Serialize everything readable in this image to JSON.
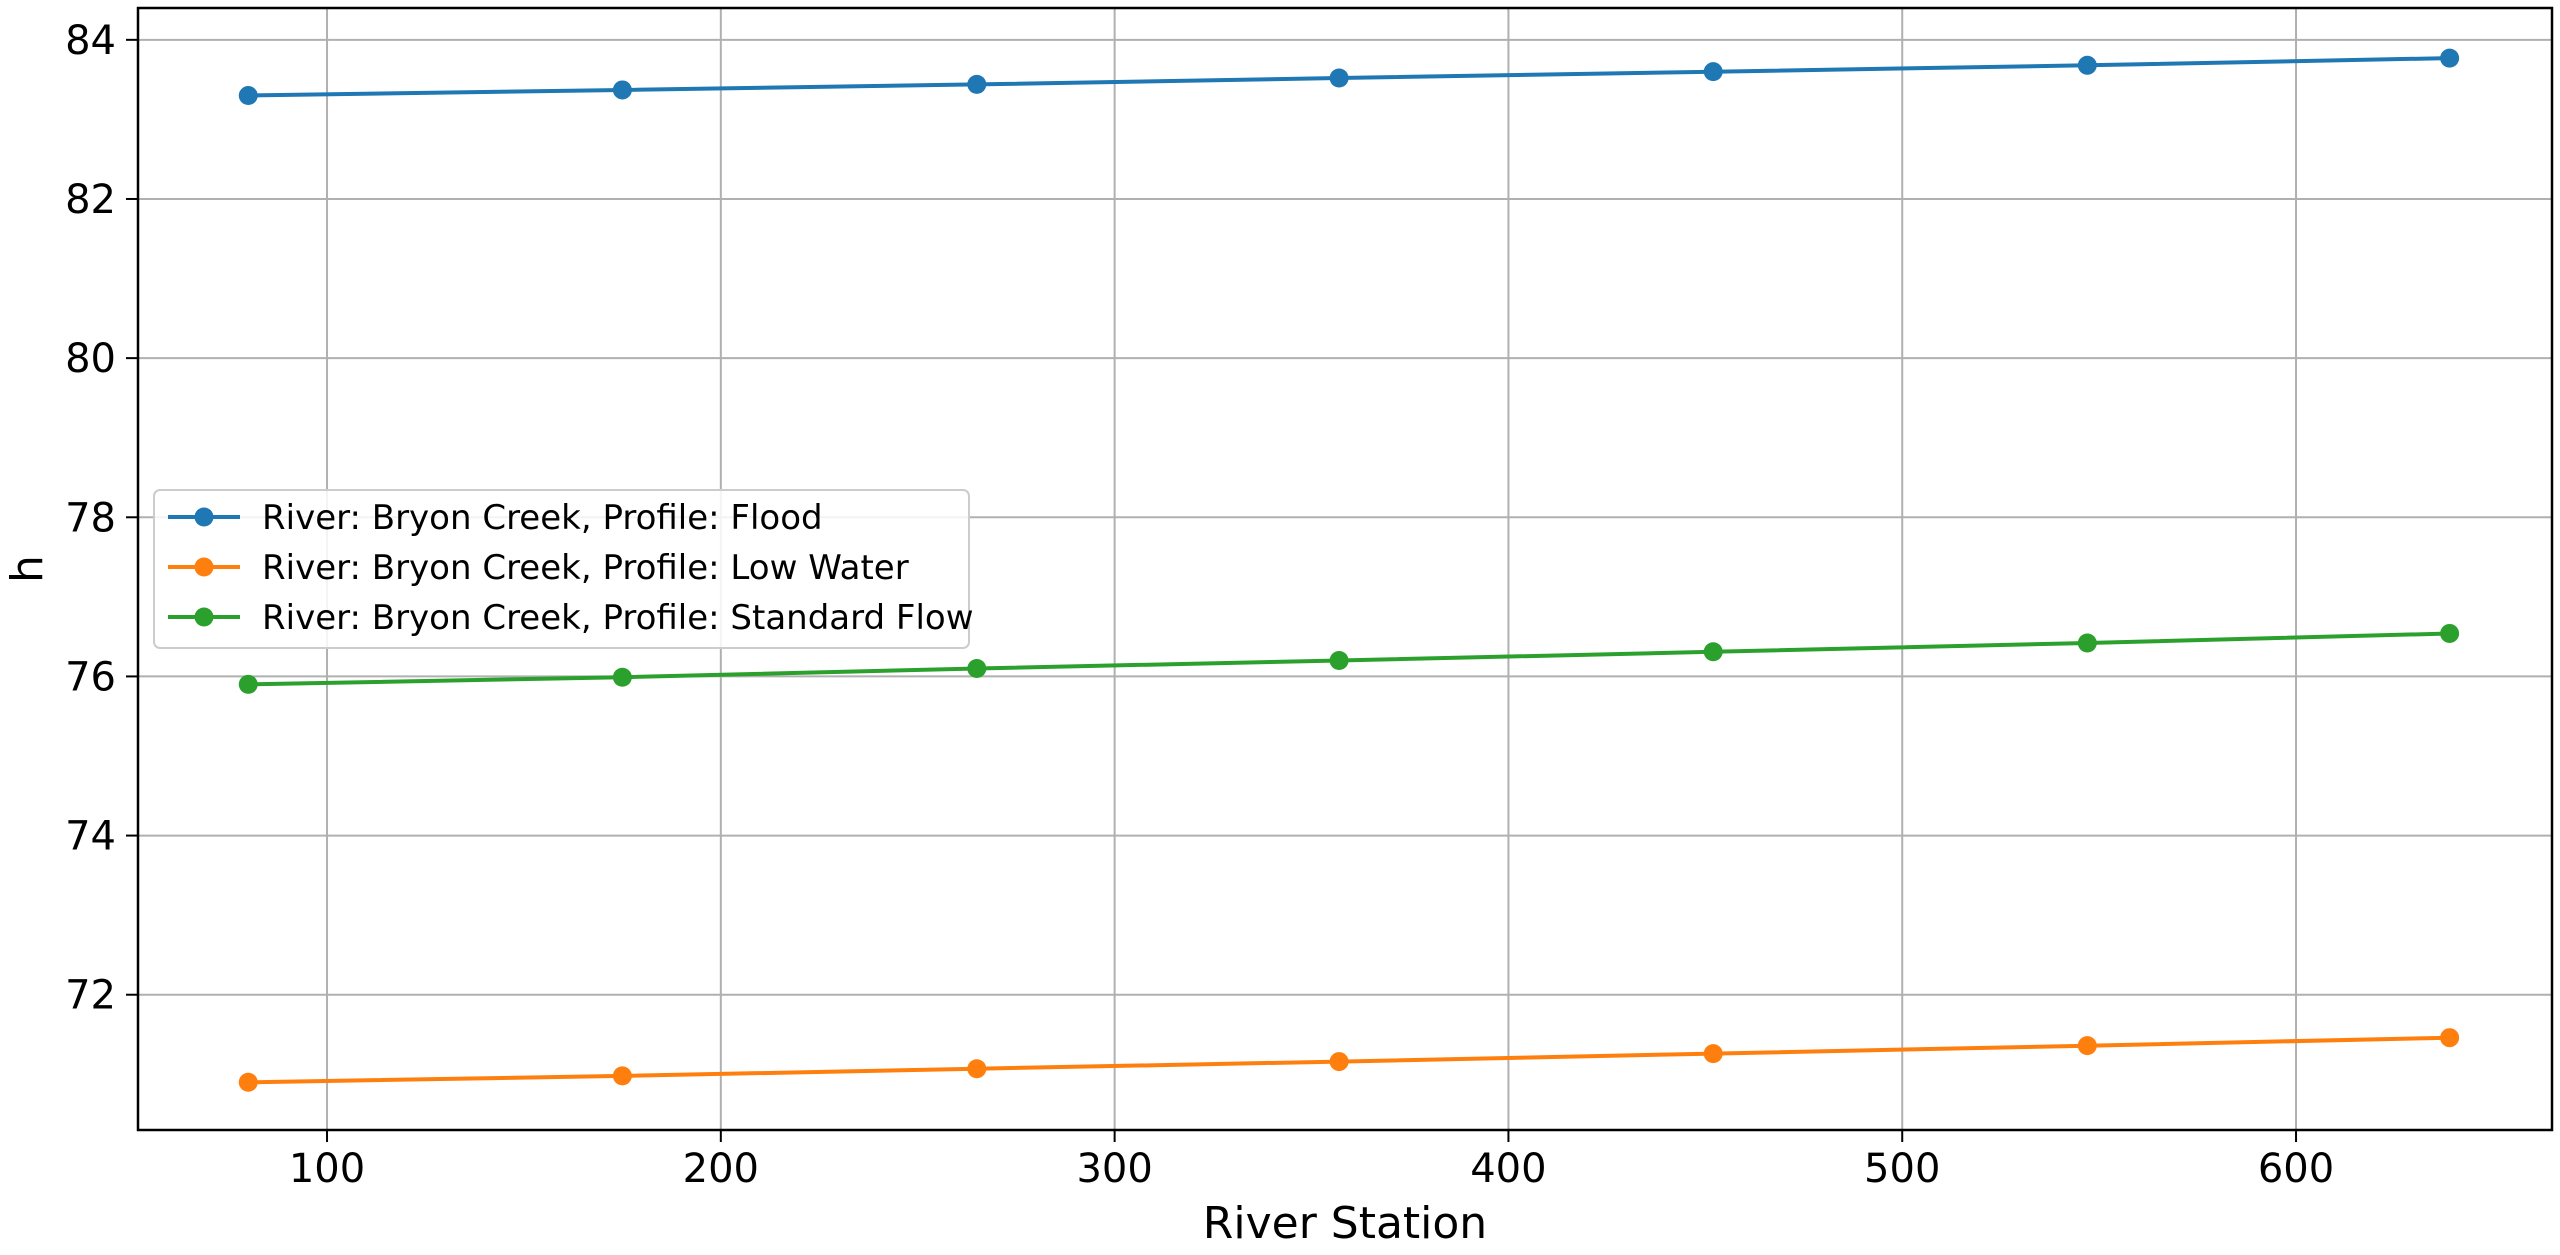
{
  "chart_data": {
    "type": "line",
    "xlabel": "River Station",
    "ylabel": "h",
    "xlim": [
      52,
      665
    ],
    "ylim": [
      70.3,
      84.4
    ],
    "xticks": [
      100,
      200,
      300,
      400,
      500,
      600
    ],
    "yticks": [
      72,
      74,
      76,
      78,
      80,
      82,
      84
    ],
    "grid": true,
    "legend_position": "center-left",
    "x": [
      80,
      175,
      265,
      357,
      452,
      547,
      639
    ],
    "series": [
      {
        "name": "River: Bryon Creek, Profile: Flood",
        "color": "#1f77b4",
        "values": [
          83.3,
          83.37,
          83.44,
          83.52,
          83.6,
          83.68,
          83.77
        ]
      },
      {
        "name": "River: Bryon Creek, Profile: Low Water",
        "color": "#ff7f0e",
        "values": [
          70.9,
          70.98,
          71.07,
          71.16,
          71.26,
          71.36,
          71.46
        ]
      },
      {
        "name": "River: Bryon Creek, Profile: Standard Flow",
        "color": "#2ca02c",
        "values": [
          75.9,
          75.99,
          76.1,
          76.2,
          76.31,
          76.42,
          76.54
        ]
      }
    ]
  }
}
